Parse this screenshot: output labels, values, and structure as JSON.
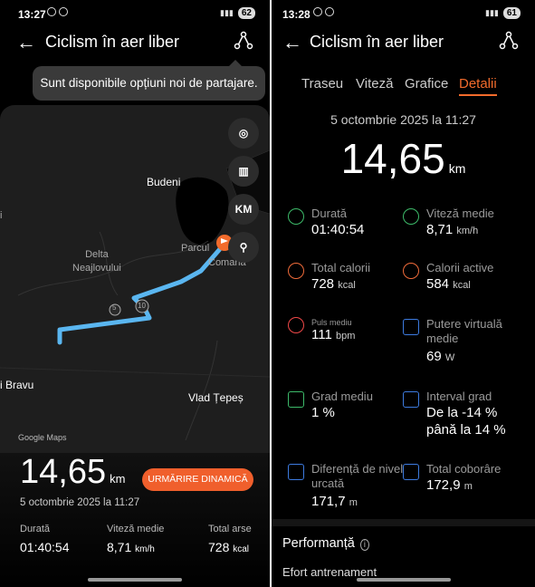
{
  "left": {
    "status": {
      "time": "13:27",
      "battery": "62"
    },
    "header": {
      "title": "Ciclism în aer liber"
    },
    "tooltip": "Sunt disponibile opțiuni noi de partajare.",
    "map": {
      "controls": {
        "km_label": "KM"
      },
      "places": {
        "budeni": "Budeni",
        "delta": "Delta\nNeajlovului",
        "parcul": "Parcul",
        "comana": "Comana",
        "bravu": "i Bravu",
        "vlad": "Vlad Țepeș",
        "marker5": "5",
        "marker10": "10",
        "edge_i": "i"
      },
      "attribution": "Google Maps"
    },
    "summary": {
      "distance": "14,65",
      "distance_unit": "km",
      "dynamic_button": "URMĂRIRE DINAMICĂ",
      "date": "5 octombrie 2025 la 11:27",
      "stats": [
        {
          "label": "Durată",
          "value": "01:40:54",
          "unit": ""
        },
        {
          "label": "Viteză medie",
          "value": "8,71",
          "unit": "km/h"
        },
        {
          "label": "Total arse",
          "value": "728",
          "unit": "kcal"
        }
      ]
    }
  },
  "right": {
    "status": {
      "time": "13:28",
      "battery": "61"
    },
    "header": {
      "title": "Ciclism în aer liber"
    },
    "tabs": [
      "Traseu",
      "Viteză",
      "Grafice",
      "Detalii"
    ],
    "active_tab": "Detalii",
    "date": "5 octombrie 2025 la 11:27",
    "distance": "14,65",
    "distance_unit": "km",
    "metrics": [
      {
        "label": "Durată",
        "value": "01:40:54",
        "unit": "",
        "icon": "stopwatch-icon",
        "color": "#3dbb6a"
      },
      {
        "label": "Viteză medie",
        "value": "8,71",
        "unit": "km/h",
        "icon": "speedometer-icon",
        "color": "#3dbb6a"
      },
      {
        "label": "Total calorii",
        "value": "728",
        "unit": "kcal",
        "icon": "flame-icon",
        "color": "#f06b3a"
      },
      {
        "label": "Calorii active",
        "value": "584",
        "unit": "kcal",
        "icon": "flame-icon",
        "color": "#f06b3a"
      },
      {
        "label": "Puls mediu",
        "value": "111",
        "unit": "bpm",
        "icon": "heart-icon",
        "color": "#f04848"
      },
      {
        "label": "Putere virtuală medie",
        "value": "69",
        "unit": "W",
        "icon": "power-icon",
        "color": "#3d7be0"
      },
      {
        "label": "Grad mediu",
        "value": "1 %",
        "unit": "",
        "icon": "slope-icon",
        "color": "#3dbb6a"
      },
      {
        "label": "Interval grad",
        "value": "De la -14 %\npână la 14 %",
        "unit": "",
        "icon": "bar-chart-icon",
        "color": "#3d7be0"
      },
      {
        "label": "Diferență de nivel urcată",
        "value": "171,7",
        "unit": "m",
        "icon": "ascent-icon",
        "color": "#3d7be0"
      },
      {
        "label": "Total coborâre",
        "value": "172,9",
        "unit": "m",
        "icon": "descent-icon",
        "color": "#3d7be0"
      }
    ],
    "performance": {
      "title": "Performanță",
      "subtitle": "Efort antrenament"
    }
  }
}
